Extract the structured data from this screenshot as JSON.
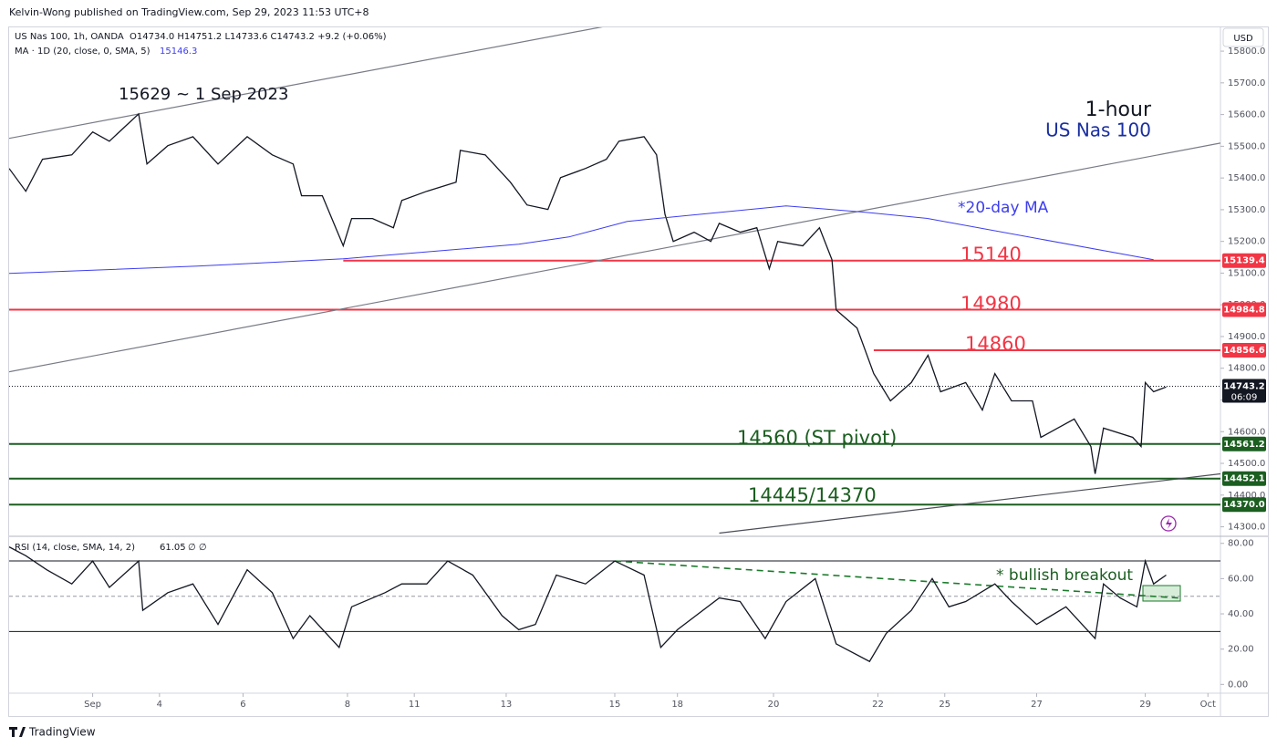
{
  "header": {
    "publisher": "Kelvin-Wong published on TradingView.com, Sep 29, 2023 11:53 UTC+8",
    "currency": "USD",
    "brand": "TradingView"
  },
  "chart_data": [
    {
      "type": "line",
      "title": "US Nas 100, 1h, OANDA",
      "ohlc": "O14734.0  H14751.2  L14733.6  C14743.2  +9.2 (+0.06%)",
      "ma_value": 15146.3,
      "xlim": [
        0,
        290
      ],
      "ylim": [
        14270,
        15875
      ],
      "xticks": [
        {
          "value": 20,
          "label": "Sep"
        },
        {
          "value": 36,
          "label": "4"
        },
        {
          "value": 56,
          "label": "6"
        },
        {
          "value": 81,
          "label": "8"
        },
        {
          "value": 97,
          "label": "11"
        },
        {
          "value": 119,
          "label": "13"
        },
        {
          "value": 145,
          "label": "15"
        },
        {
          "value": 160,
          "label": "18"
        },
        {
          "value": 183,
          "label": "20"
        },
        {
          "value": 208,
          "label": "22"
        },
        {
          "value": 224,
          "label": "25"
        },
        {
          "value": 246,
          "label": "27"
        },
        {
          "value": 272,
          "label": "29"
        },
        {
          "value": 287,
          "label": "Oct"
        }
      ],
      "yticks": [
        {
          "value": 14300,
          "label": "14300.0"
        },
        {
          "value": 14400,
          "label": "14400.0"
        },
        {
          "value": 14500,
          "label": "14500.0"
        },
        {
          "value": 14600,
          "label": "14600.0"
        },
        {
          "value": 14700,
          "label": "14700.0"
        },
        {
          "value": 14800,
          "label": "14800.0"
        },
        {
          "value": 14900,
          "label": "14900.0"
        },
        {
          "value": 15000,
          "label": "15000.0"
        },
        {
          "value": 15100,
          "label": "15100.0"
        },
        {
          "value": 15200,
          "label": "15200.0"
        },
        {
          "value": 15300,
          "label": "15300.0"
        },
        {
          "value": 15400,
          "label": "15400.0"
        },
        {
          "value": 15500,
          "label": "15500.0"
        },
        {
          "value": 15600,
          "label": "15600.0"
        },
        {
          "value": 15700,
          "label": "15700.0"
        },
        {
          "value": 15800,
          "label": "15800.0"
        }
      ],
      "x": [
        0,
        4,
        8,
        15,
        20,
        24,
        31,
        33,
        38,
        44,
        50,
        57,
        63,
        68,
        70,
        75,
        80,
        82,
        87,
        92,
        94,
        100,
        107,
        108,
        114,
        120,
        124,
        129,
        132,
        138,
        143,
        146,
        152,
        155,
        157,
        159,
        164,
        168,
        170,
        175,
        179,
        182,
        184,
        190,
        194,
        197,
        198,
        203,
        207,
        211,
        216,
        220,
        223,
        229,
        233,
        236,
        240,
        245,
        247,
        251,
        255,
        259,
        260,
        262,
        269,
        271,
        272,
        274,
        277
      ],
      "series": [
        {
          "name": "US Nas 100",
          "color": "#131722",
          "values": [
            15430,
            15358,
            15459,
            15473,
            15545,
            15516,
            15602,
            15444,
            15502,
            15530,
            15444,
            15530,
            15473,
            15444,
            15344,
            15344,
            15186,
            15272,
            15272,
            15243,
            15329,
            15358,
            15387,
            15487,
            15473,
            15387,
            15315,
            15301,
            15401,
            15430,
            15459,
            15516,
            15530,
            15473,
            15286,
            15200,
            15229,
            15200,
            15257,
            15229,
            15243,
            15114,
            15200,
            15186,
            15243,
            15142,
            14984,
            14927,
            14783,
            14697,
            14755,
            14841,
            14726,
            14755,
            14668,
            14783,
            14697,
            14697,
            14582,
            14611,
            14640,
            14553,
            14467,
            14611,
            14582,
            14553,
            14755,
            14726,
            14741
          ]
        },
        {
          "name": "MA · 1D (20, close, 0, SMA, 5)",
          "color": "#3d3df0",
          "x": [
            0,
            45,
            80,
            122,
            134,
            148,
            186,
            205,
            220,
            274
          ],
          "values": [
            15099,
            15122,
            15145,
            15191,
            15214,
            15263,
            15312,
            15292,
            15272,
            15142
          ]
        }
      ],
      "trendlines": [
        {
          "color": "#787b86",
          "x": [
            0,
            145
          ],
          "values": [
            15525,
            15884
          ]
        },
        {
          "color": "#787b86",
          "x": [
            0,
            290
          ],
          "values": [
            14789,
            15510
          ]
        },
        {
          "color": "#4a4d57",
          "x": [
            170,
            290
          ],
          "values": [
            14280,
            14467
          ]
        }
      ],
      "levels": {
        "values": [
          15139.4,
          14984.8,
          14856.6,
          14561.2,
          14452.1,
          14370.0
        ],
        "value_labels": [
          "15139.4",
          "14984.8",
          "14856.6",
          "14561.2",
          "14452.1",
          "14370.0"
        ],
        "starts": [
          80,
          0,
          207,
          0,
          0,
          0
        ],
        "colors": [
          "#f23645",
          "#f23645",
          "#f23645",
          "#1b5e20",
          "#1b5e20",
          "#1b5e20"
        ]
      },
      "last_price": 14743.2,
      "countdown": "06:09",
      "annotations": [
        {
          "text": "15629 ~ 1 Sep 2023",
          "color": "#131722"
        },
        {
          "text": "1-hour",
          "color": "#131722"
        },
        {
          "text": "*20-day MA",
          "color": "#3d3df0"
        },
        {
          "text": "15140",
          "color": "#f23645"
        },
        {
          "text": "14980",
          "color": "#f23645"
        },
        {
          "text": "14860",
          "color": "#f23645"
        },
        {
          "text": "14560 (ST pivot)",
          "color": "#1b5e20"
        },
        {
          "text": "14445/14370",
          "color": "#1b5e20"
        }
      ]
    },
    {
      "type": "line",
      "title": "RSI (14, close, SMA, 14, 2)",
      "last_value": 61.05,
      "status": "∅  ∅",
      "xlim": [
        0,
        290
      ],
      "ylim": [
        -5,
        84
      ],
      "yticks": [
        {
          "value": 0,
          "label": "0.00"
        },
        {
          "value": 20,
          "label": "20.00"
        },
        {
          "value": 40,
          "label": "40.00"
        },
        {
          "value": 60,
          "label": "60.00"
        },
        {
          "value": 80,
          "label": "80.00"
        }
      ],
      "bands": [
        70,
        50,
        30
      ],
      "x": [
        0,
        4,
        9,
        15,
        20,
        24,
        31,
        32,
        38,
        44,
        50,
        57,
        63,
        68,
        72,
        79,
        82,
        90,
        94,
        100,
        105,
        111,
        118,
        122,
        126,
        131,
        138,
        145,
        152,
        156,
        160,
        170,
        175,
        181,
        186,
        193,
        198,
        206,
        210,
        216,
        221,
        225,
        229,
        236,
        240,
        246,
        253,
        260,
        262,
        266,
        270,
        272,
        274,
        277
      ],
      "series": [
        {
          "name": "RSI",
          "color": "#131722",
          "values": [
            78,
            73,
            65,
            57,
            70,
            55,
            70,
            42,
            52,
            57,
            34,
            65,
            52,
            26,
            39,
            21,
            44,
            52,
            57,
            57,
            70,
            62,
            39,
            31,
            34,
            62,
            57,
            70,
            62,
            21,
            31,
            49,
            47,
            26,
            47,
            60,
            23,
            13,
            29,
            42,
            60,
            44,
            47,
            57,
            47,
            34,
            44,
            26,
            57,
            49,
            44,
            70,
            57,
            62
          ]
        }
      ],
      "trendlines": [
        {
          "color": "#1b7a2b",
          "x": [
            145,
            280
          ],
          "values": [
            70,
            49
          ]
        }
      ],
      "annotations": [
        {
          "text": "* bullish breakout",
          "color": "#1b5e20"
        }
      ]
    }
  ]
}
